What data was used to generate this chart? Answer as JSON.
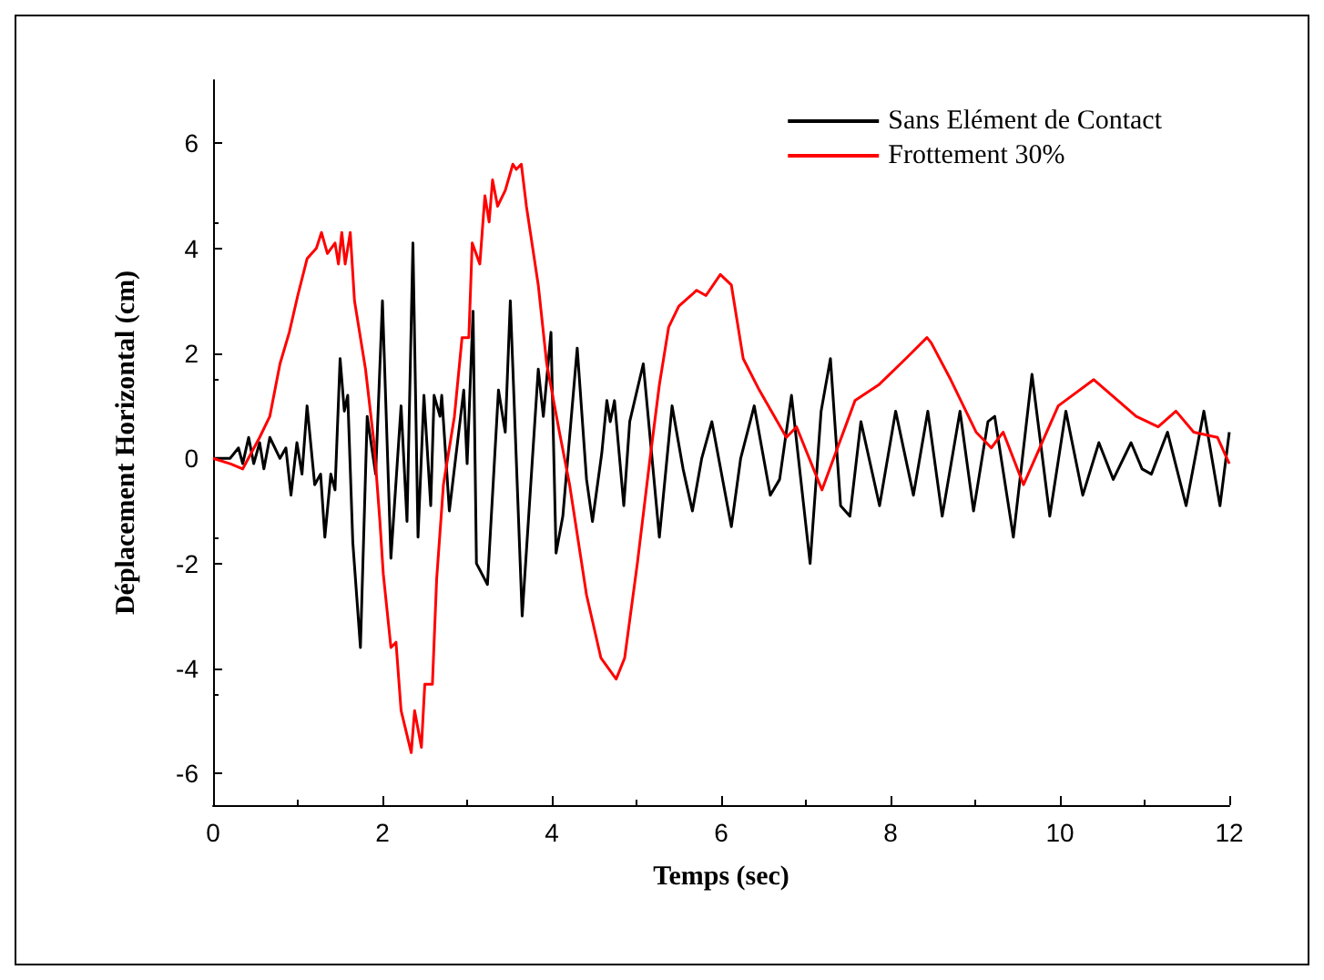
{
  "chart_data": {
    "type": "line",
    "xlabel": "Temps (sec)",
    "ylabel": "Déplacement Horizontal (cm)",
    "xlim": [
      0,
      12
    ],
    "xticks": [
      0,
      2,
      4,
      6,
      8,
      10,
      12
    ],
    "ylim": [
      -6.6,
      7.2
    ],
    "yticks": [
      -6,
      -4,
      -2,
      0,
      2,
      4,
      6
    ],
    "grid": false,
    "legend": "top right",
    "marker": "none",
    "line_style": "solid",
    "series": [
      {
        "name": "Sans Elément de Contact",
        "color": "#000000",
        "x": [
          0,
          0.2,
          0.3,
          0.35,
          0.42,
          0.48,
          0.55,
          0.6,
          0.67,
          0.79,
          0.86,
          0.92,
          0.99,
          1.05,
          1.11,
          1.2,
          1.27,
          1.32,
          1.39,
          1.44,
          1.5,
          1.55,
          1.59,
          1.65,
          1.74,
          1.82,
          1.92,
          2.0,
          2.1,
          2.22,
          2.29,
          2.36,
          2.42,
          2.49,
          2.57,
          2.61,
          2.68,
          2.7,
          2.79,
          2.96,
          3.0,
          3.07,
          3.11,
          3.24,
          3.37,
          3.45,
          3.51,
          3.65,
          3.84,
          3.9,
          3.99,
          4.05,
          4.13,
          4.3,
          4.41,
          4.48,
          4.59,
          4.65,
          4.69,
          4.74,
          4.85,
          4.92,
          5.08,
          5.27,
          5.42,
          5.55,
          5.66,
          5.77,
          5.89,
          6.12,
          6.23,
          6.39,
          6.58,
          6.69,
          6.83,
          7.05,
          7.18,
          7.29,
          7.41,
          7.52,
          7.65,
          7.87,
          8.06,
          8.27,
          8.44,
          8.61,
          8.82,
          8.98,
          9.15,
          9.23,
          9.45,
          9.67,
          9.88,
          10.07,
          10.27,
          10.46,
          10.63,
          10.84,
          10.97,
          11.08,
          11.27,
          11.49,
          11.7,
          11.89,
          12.0
        ],
        "values": [
          0,
          0,
          0.2,
          -0.1,
          0.4,
          -0.1,
          0.3,
          -0.2,
          0.4,
          0,
          0.2,
          -0.7,
          0.3,
          -0.3,
          1.0,
          -0.5,
          -0.3,
          -1.5,
          -0.3,
          -0.6,
          1.9,
          0.9,
          1.2,
          -1.6,
          -3.6,
          0.8,
          -0.3,
          3.0,
          -1.9,
          1.0,
          -1.2,
          4.1,
          -1.5,
          1.2,
          -0.9,
          1.2,
          0.8,
          1.2,
          -1.0,
          1.3,
          -0.1,
          2.8,
          -2.0,
          -2.4,
          1.3,
          0.5,
          3.0,
          -3.0,
          1.7,
          0.8,
          2.4,
          -1.8,
          -1.1,
          2.1,
          -0.4,
          -1.2,
          0.1,
          1.1,
          0.7,
          1.1,
          -0.9,
          0.7,
          1.8,
          -1.5,
          1.0,
          -0.2,
          -1.0,
          0,
          0.7,
          -1.3,
          0,
          1.0,
          -0.7,
          -0.4,
          1.2,
          -2.0,
          0.9,
          1.9,
          -0.9,
          -1.1,
          0.7,
          -0.9,
          0.9,
          -0.7,
          0.9,
          -1.1,
          0.9,
          -1.0,
          0.7,
          0.8,
          -1.5,
          1.6,
          -1.1,
          0.9,
          -0.7,
          0.3,
          -0.4,
          0.3,
          -0.2,
          -0.3,
          0.5,
          -0.9,
          0.9,
          -0.9,
          0.5
        ]
      },
      {
        "name": "Frottement 30%",
        "color": "#ff0000",
        "x": [
          0,
          0.2,
          0.35,
          0.45,
          0.55,
          0.67,
          0.79,
          0.9,
          1.0,
          1.11,
          1.22,
          1.28,
          1.35,
          1.44,
          1.48,
          1.52,
          1.56,
          1.62,
          1.67,
          1.8,
          1.9,
          1.97,
          2.01,
          2.1,
          2.16,
          2.22,
          2.34,
          2.38,
          2.46,
          2.5,
          2.59,
          2.64,
          2.72,
          2.85,
          2.94,
          3.02,
          3.06,
          3.15,
          3.21,
          3.26,
          3.3,
          3.36,
          3.45,
          3.54,
          3.58,
          3.64,
          3.7,
          3.84,
          3.94,
          4.09,
          4.21,
          4.41,
          4.58,
          4.76,
          4.86,
          5.01,
          5.16,
          5.27,
          5.38,
          5.5,
          5.71,
          5.82,
          5.99,
          6.12,
          6.26,
          6.45,
          6.77,
          6.89,
          7.19,
          7.58,
          7.86,
          8.18,
          8.43,
          8.48,
          8.71,
          9.01,
          9.19,
          9.33,
          9.57,
          9.98,
          10.4,
          10.9,
          11.16,
          11.37,
          11.58,
          11.86,
          12.0
        ],
        "values": [
          0,
          -0.1,
          -0.2,
          0.1,
          0.4,
          0.8,
          1.8,
          2.4,
          3.1,
          3.8,
          4.0,
          4.3,
          3.9,
          4.1,
          3.7,
          4.3,
          3.7,
          4.3,
          3.0,
          1.7,
          0.3,
          -1.2,
          -2.2,
          -3.6,
          -3.5,
          -4.8,
          -5.6,
          -4.8,
          -5.5,
          -4.3,
          -4.3,
          -2.3,
          -0.5,
          0.8,
          2.3,
          2.3,
          4.1,
          3.7,
          5.0,
          4.5,
          5.3,
          4.8,
          5.1,
          5.6,
          5.5,
          5.6,
          4.8,
          3.3,
          1.8,
          0.5,
          -0.5,
          -2.6,
          -3.8,
          -4.2,
          -3.8,
          -2.0,
          0,
          1.4,
          2.5,
          2.9,
          3.2,
          3.1,
          3.5,
          3.3,
          1.9,
          1.3,
          0.4,
          0.6,
          -0.6,
          1.1,
          1.4,
          1.9,
          2.3,
          2.2,
          1.5,
          0.5,
          0.2,
          0.5,
          -0.5,
          1.0,
          1.5,
          0.8,
          0.6,
          0.9,
          0.5,
          0.4,
          -0.1
        ]
      }
    ]
  }
}
